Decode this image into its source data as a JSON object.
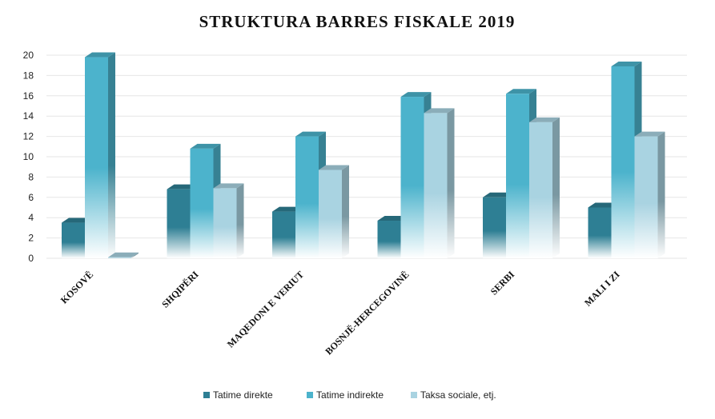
{
  "chart_data": {
    "type": "bar",
    "title": "STRUKTURA BARRES FISKALE 2019",
    "categories": [
      "KOSOVË",
      "SHQIPËRI",
      "MAQEDONI E VERIUT",
      "BOSNJË-HERCEGOVINË",
      "SERBI",
      "MALI I ZI"
    ],
    "series": [
      {
        "name": "Tatime direkte",
        "values": [
          3.5,
          6.8,
          4.6,
          3.7,
          6.0,
          5.0
        ],
        "color": "#2e7f94"
      },
      {
        "name": "Tatime indirekte",
        "values": [
          19.8,
          10.8,
          12.0,
          15.9,
          16.2,
          18.9
        ],
        "color": "#4cb3cc"
      },
      {
        "name": "Taksa sociale, etj.",
        "values": [
          0.1,
          6.9,
          8.7,
          14.3,
          13.4,
          12.0
        ],
        "color": "#a9d3e1"
      }
    ],
    "ylim": [
      0,
      20
    ],
    "yticks": [
      0,
      2,
      4,
      6,
      8,
      10,
      12,
      14,
      16,
      18,
      20
    ],
    "xlabel": "",
    "ylabel": "",
    "grid": true,
    "legend": "bottom"
  }
}
